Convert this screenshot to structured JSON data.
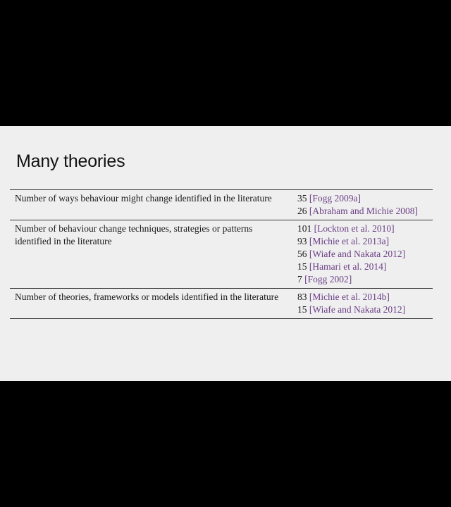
{
  "slide": {
    "title": "Many theories",
    "rows": [
      {
        "description": "Number of ways behaviour might change identified in the literature",
        "refs": [
          {
            "count": "35",
            "citation": "Fogg 2009a"
          },
          {
            "count": "26",
            "citation": "Abraham and Michie 2008"
          }
        ]
      },
      {
        "description": "Number of behaviour change techniques, strategies or patterns identified in the literature",
        "refs": [
          {
            "count": "101",
            "citation": "Lockton et al. 2010"
          },
          {
            "count": "93",
            "citation": "Michie et al. 2013a"
          },
          {
            "count": "56",
            "citation": "Wiafe and Nakata 2012"
          },
          {
            "count": "15",
            "citation": "Hamari et al. 2014"
          },
          {
            "count": "7",
            "citation": "Fogg 2002"
          }
        ]
      },
      {
        "description": "Number of theories, frameworks or models identified in the literature",
        "refs": [
          {
            "count": "83",
            "citation": "Michie et al. 2014b"
          },
          {
            "count": "15",
            "citation": "Wiafe and Nakata 2012"
          }
        ]
      }
    ]
  },
  "colors": {
    "background": "#000000",
    "slide": "#efefef",
    "citation": "#6b3f86"
  }
}
